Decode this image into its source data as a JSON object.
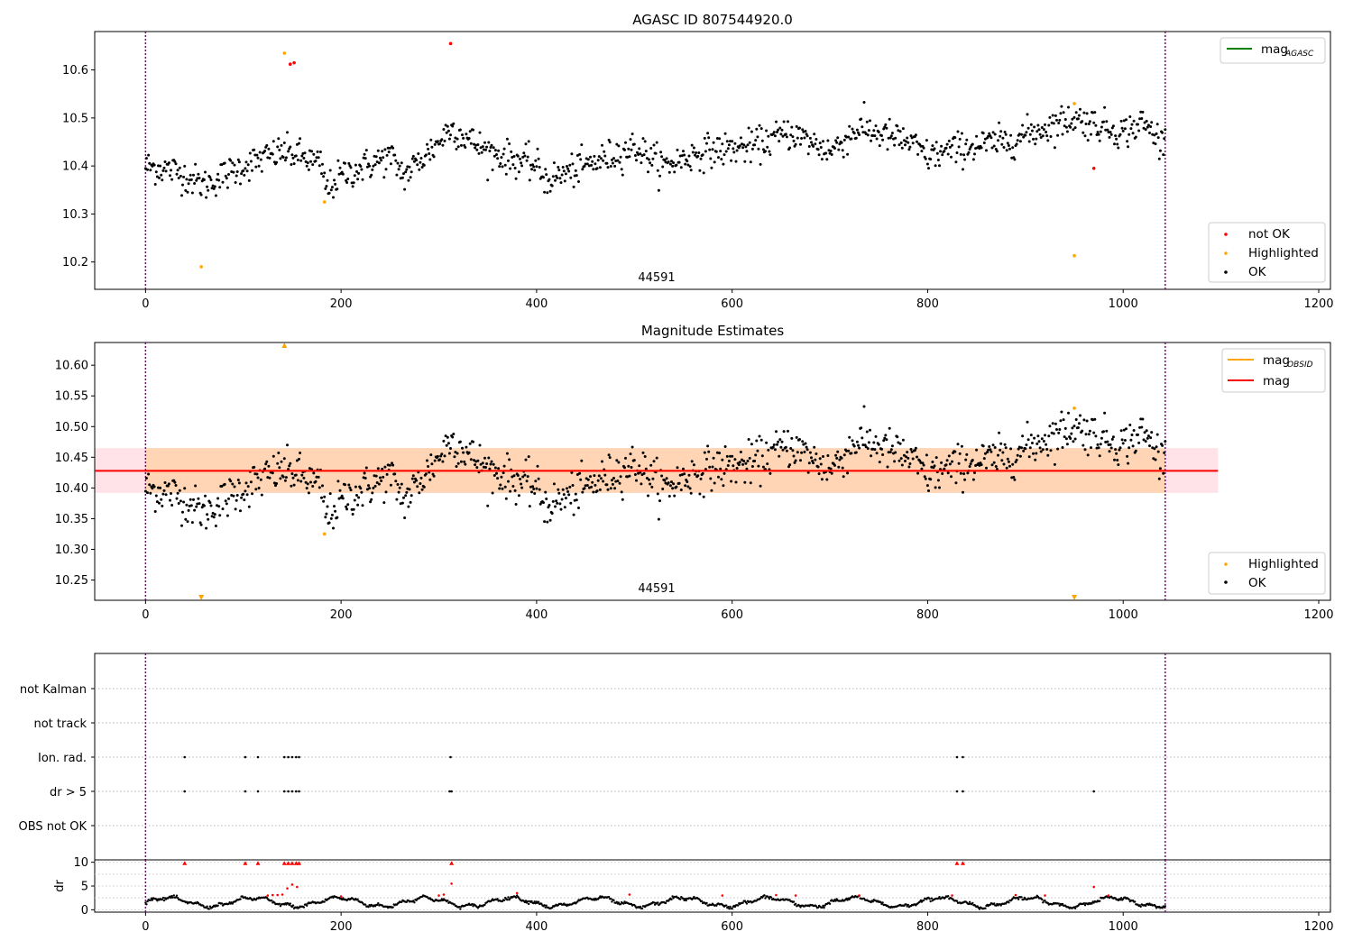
{
  "figure_title": "AGASC ID 807544920.0",
  "chart_data": [
    {
      "type": "scatter",
      "title": "AGASC ID 807544920.0",
      "xlim": [
        -52,
        1212
      ],
      "ylim": [
        10.143,
        10.68
      ],
      "xticks": [
        "0",
        "200",
        "400",
        "600",
        "800",
        "1000",
        "1200"
      ],
      "yticks": [
        "10.2",
        "10.3",
        "10.4",
        "10.5",
        "10.6"
      ],
      "ytick_values": [
        10.2,
        10.3,
        10.4,
        10.5,
        10.6
      ],
      "annotation": "44591",
      "vlines": [
        0,
        1043
      ],
      "legend_upper": {
        "label": "mag",
        "sub": "AGASC",
        "color": "#008000"
      },
      "legend_lower": [
        {
          "label": "not OK",
          "color": "#ff0000"
        },
        {
          "label": "Highlighted",
          "color": "#ffa500"
        },
        {
          "label": "OK",
          "color": "#000000"
        }
      ],
      "highlighted_points": [
        [
          142,
          10.635
        ],
        [
          57,
          10.19
        ],
        [
          183,
          10.325
        ],
        [
          950,
          10.53
        ],
        [
          950,
          10.213
        ]
      ],
      "not_ok_points": [
        [
          148,
          10.612
        ],
        [
          152,
          10.615
        ],
        [
          312,
          10.655
        ],
        [
          970,
          10.395
        ]
      ],
      "ok_series_trend": [
        [
          0,
          10.4
        ],
        [
          30,
          10.39
        ],
        [
          60,
          10.36
        ],
        [
          100,
          10.4
        ],
        [
          140,
          10.43
        ],
        [
          160,
          10.42
        ],
        [
          180,
          10.4
        ],
        [
          185,
          10.35
        ],
        [
          200,
          10.38
        ],
        [
          250,
          10.42
        ],
        [
          265,
          10.38
        ],
        [
          300,
          10.45
        ],
        [
          312,
          10.48
        ],
        [
          350,
          10.43
        ],
        [
          400,
          10.4
        ],
        [
          410,
          10.37
        ],
        [
          450,
          10.4
        ],
        [
          500,
          10.44
        ],
        [
          530,
          10.4
        ],
        [
          570,
          10.43
        ],
        [
          620,
          10.44
        ],
        [
          660,
          10.47
        ],
        [
          700,
          10.43
        ],
        [
          730,
          10.48
        ],
        [
          780,
          10.45
        ],
        [
          800,
          10.42
        ],
        [
          840,
          10.44
        ],
        [
          880,
          10.45
        ],
        [
          920,
          10.48
        ],
        [
          950,
          10.5
        ],
        [
          1000,
          10.47
        ],
        [
          1020,
          10.49
        ],
        [
          1040,
          10.45
        ]
      ]
    },
    {
      "type": "scatter",
      "title": "Magnitude Estimates",
      "xlim": [
        -52,
        1212
      ],
      "ylim": [
        10.217,
        10.637
      ],
      "xticks": [
        "0",
        "200",
        "400",
        "600",
        "800",
        "1000",
        "1200"
      ],
      "yticks": [
        "10.25",
        "10.30",
        "10.35",
        "10.40",
        "10.45",
        "10.50",
        "10.55",
        "10.60"
      ],
      "ytick_values": [
        10.25,
        10.3,
        10.35,
        10.4,
        10.45,
        10.5,
        10.55,
        10.6
      ],
      "annotation": "44591",
      "vlines": [
        0,
        1043
      ],
      "mag_line": {
        "value": 10.428,
        "band": [
          10.392,
          10.465
        ],
        "x_range": [
          -52,
          1097
        ],
        "color": "#ff0000"
      },
      "mag_obsid": {
        "value": 10.428,
        "band": [
          10.392,
          10.465
        ],
        "x_range": [
          0,
          1043
        ],
        "color": "#ffa500"
      },
      "legend_upper": [
        {
          "label": "mag",
          "sub": "OBSID",
          "color": "#ffa500"
        },
        {
          "label": "mag",
          "sub": "",
          "color": "#ff0000"
        }
      ],
      "legend_lower": [
        {
          "label": "Highlighted",
          "color": "#ffa500"
        },
        {
          "label": "OK",
          "color": "#000000"
        }
      ],
      "highlighted_points": [
        [
          183,
          10.325
        ],
        [
          950,
          10.53
        ]
      ],
      "out_of_range_up": [
        [
          142,
          10.635
        ]
      ],
      "out_of_range_down": [
        [
          57,
          10.19
        ],
        [
          950,
          10.213
        ]
      ]
    },
    {
      "type": "scatter",
      "title": "",
      "xlim": [
        -52,
        1212
      ],
      "categories": [
        "not Kalman",
        "not track",
        "Ion. rad.",
        "dr > 5",
        "OBS not OK"
      ],
      "vlines": [
        0,
        1043
      ],
      "flag_points": {
        "Ion. rad.": [
          40,
          102,
          115,
          142,
          146,
          150,
          154,
          157,
          312,
          830,
          836
        ],
        "dr > 5": [
          40,
          102,
          115,
          142,
          146,
          150,
          154,
          157,
          311,
          313,
          830,
          836,
          970
        ]
      }
    },
    {
      "type": "scatter",
      "title": "",
      "xlim": [
        -52,
        1212
      ],
      "ylim": [
        -0.5,
        10.5
      ],
      "ylabel": "dr",
      "xticks": [
        "0",
        "200",
        "400",
        "600",
        "800",
        "1000",
        "1200"
      ],
      "yticks": [
        "0",
        "5",
        "10"
      ],
      "ytick_values": [
        0,
        5,
        10
      ],
      "clipped_points": [
        40,
        102,
        115,
        142,
        146,
        150,
        154,
        157,
        313,
        830,
        836
      ],
      "red_points": [
        [
          125,
          3.0
        ],
        [
          130,
          3.1
        ],
        [
          135,
          3.1
        ],
        [
          140,
          3.2
        ],
        [
          145,
          4.5
        ],
        [
          150,
          5.3
        ],
        [
          155,
          4.8
        ],
        [
          200,
          2.8
        ],
        [
          300,
          3.0
        ],
        [
          305,
          3.2
        ],
        [
          313,
          5.5
        ],
        [
          380,
          3.5
        ],
        [
          495,
          3.2
        ],
        [
          590,
          3.0
        ],
        [
          645,
          3.1
        ],
        [
          665,
          3.0
        ],
        [
          730,
          3.0
        ],
        [
          825,
          3.0
        ],
        [
          890,
          3.1
        ],
        [
          920,
          3.0
        ],
        [
          970,
          4.8
        ],
        [
          985,
          3.0
        ]
      ]
    }
  ]
}
